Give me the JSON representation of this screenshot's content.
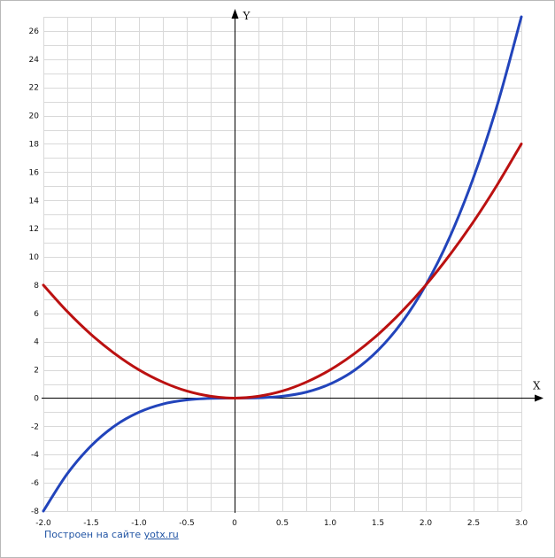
{
  "chart_data": {
    "type": "line",
    "title": "",
    "xlabel": "X",
    "ylabel": "Y",
    "xlim": [
      -2.0,
      3.0
    ],
    "ylim": [
      -8,
      27
    ],
    "grid": true,
    "x_grid_step": 0.25,
    "y_grid_step": 1,
    "x_ticks": [
      -2.0,
      -1.5,
      -1.0,
      -0.5,
      0,
      0.5,
      1.0,
      1.5,
      2.0,
      2.5,
      3.0
    ],
    "x_tick_labels": [
      "-2.0",
      "-1.5",
      "-1.0",
      "-0.5",
      "0",
      "0.5",
      "1.0",
      "1.5",
      "2.0",
      "2.5",
      "3.0"
    ],
    "y_ticks": [
      -8,
      -6,
      -4,
      -2,
      0,
      2,
      4,
      6,
      8,
      10,
      12,
      14,
      16,
      18,
      20,
      22,
      24,
      26
    ],
    "y_tick_labels": [
      "-8",
      "-6",
      "-4",
      "-2",
      "0",
      "2",
      "4",
      "6",
      "8",
      "10",
      "12",
      "14",
      "16",
      "18",
      "20",
      "22",
      "24",
      "26"
    ],
    "series": [
      {
        "color": "#2244bb",
        "x": [
          -2.0,
          -1.75,
          -1.5,
          -1.25,
          -1.0,
          -0.75,
          -0.5,
          -0.25,
          0,
          0.25,
          0.5,
          0.75,
          1.0,
          1.25,
          1.5,
          1.75,
          2.0,
          2.25,
          2.5,
          2.75,
          3.0
        ],
        "y": [
          -8.0,
          -5.36,
          -3.38,
          -1.95,
          -1.0,
          -0.42,
          -0.13,
          -0.02,
          0,
          0.02,
          0.13,
          0.42,
          1.0,
          1.95,
          3.38,
          5.36,
          8.0,
          11.39,
          15.63,
          20.8,
          27.0
        ]
      },
      {
        "color": "#bb1111",
        "x": [
          -2.0,
          -1.75,
          -1.5,
          -1.25,
          -1.0,
          -0.75,
          -0.5,
          -0.25,
          0,
          0.25,
          0.5,
          0.75,
          1.0,
          1.25,
          1.5,
          1.75,
          2.0,
          2.25,
          2.5,
          2.75,
          3.0
        ],
        "y": [
          8.0,
          6.13,
          4.5,
          3.13,
          2.0,
          1.13,
          0.5,
          0.13,
          0,
          0.13,
          0.5,
          1.13,
          2.0,
          3.13,
          4.5,
          6.13,
          8.0,
          10.13,
          12.5,
          15.13,
          18.0
        ]
      }
    ]
  },
  "footer": {
    "credit_text": "Построен на сайте ",
    "credit_link": "yotx.ru"
  }
}
